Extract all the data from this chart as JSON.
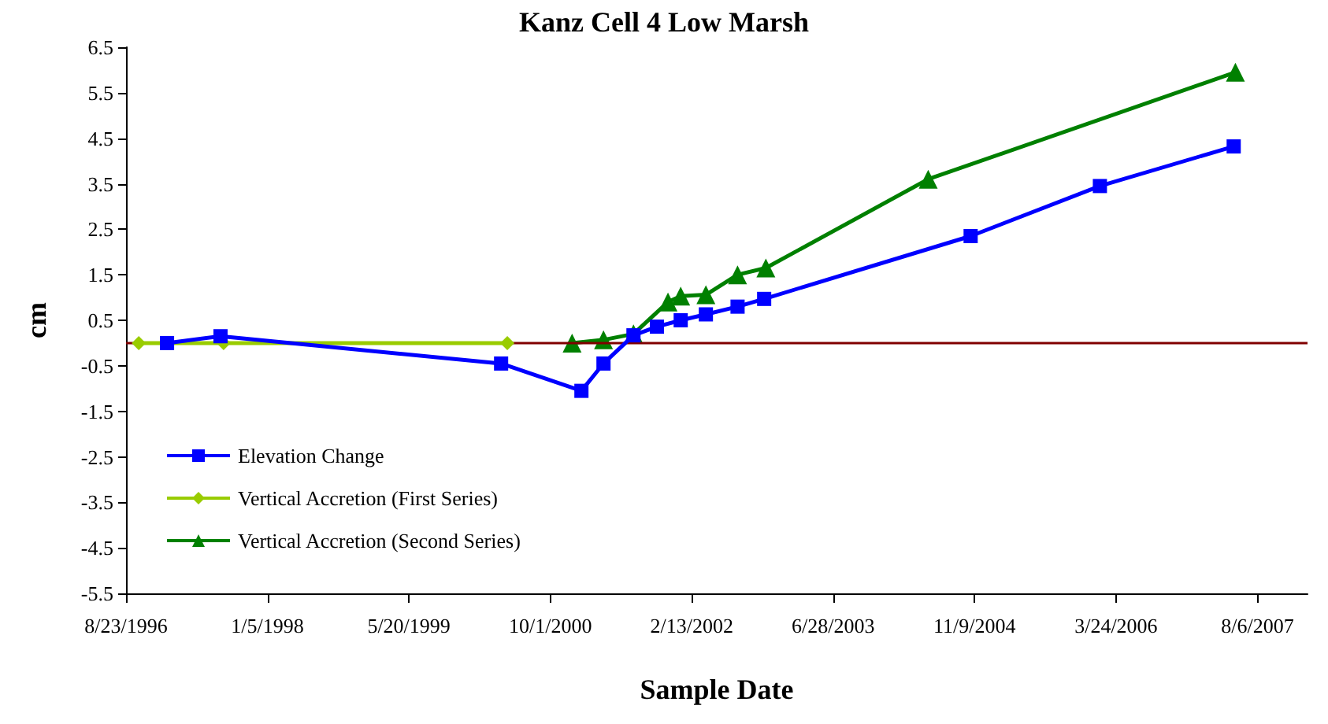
{
  "chart_data": {
    "type": "line",
    "title": "Kanz Cell 4 Low Marsh",
    "xlabel": "Sample Date",
    "ylabel": "cm",
    "xlim": [
      "1996-08-23",
      "2008-01-30"
    ],
    "xticks": [
      {
        "value": "1996-08-23",
        "label": "8/23/1996"
      },
      {
        "value": "1998-01-05",
        "label": "1/5/1998"
      },
      {
        "value": "1999-05-20",
        "label": "5/20/1999"
      },
      {
        "value": "2000-10-01",
        "label": "10/1/2000"
      },
      {
        "value": "2002-02-13",
        "label": "2/13/2002"
      },
      {
        "value": "2003-06-28",
        "label": "6/28/2003"
      },
      {
        "value": "2004-11-09",
        "label": "11/9/2004"
      },
      {
        "value": "2006-03-24",
        "label": "3/24/2006"
      },
      {
        "value": "2007-08-06",
        "label": "8/6/2007"
      }
    ],
    "ylim": [
      -5.5,
      6.5
    ],
    "yticks": [
      -5.5,
      -4.5,
      -3.5,
      -2.5,
      -1.5,
      -0.5,
      0.5,
      1.5,
      2.5,
      3.5,
      4.5,
      5.5,
      6.5
    ],
    "grid": false,
    "legend": "bottom left",
    "line_style": "solid",
    "ref_lines": [
      {
        "axis": "y",
        "value": 0,
        "color": "#800000"
      }
    ],
    "series": [
      {
        "name": "Elevation Change",
        "color": "#0000ff",
        "marker": "square",
        "x": [
          "1997-01-15",
          "1997-07-23",
          "2000-04-10",
          "2001-01-19",
          "2001-04-07",
          "2001-07-22",
          "2001-10-13",
          "2002-01-05",
          "2002-04-04",
          "2002-07-25",
          "2002-10-27",
          "2004-10-26",
          "2006-01-26",
          "2007-05-14"
        ],
        "values": [
          0,
          0.15,
          -0.45,
          -1.05,
          -0.45,
          0.17,
          0.36,
          0.5,
          0.63,
          0.8,
          0.97,
          2.35,
          3.45,
          4.32
        ]
      },
      {
        "name": "Vertical Accretion (First Series)",
        "color": "#99cc00",
        "marker": "diamond",
        "x": [
          "1996-10-07",
          "1997-08-03",
          "2000-05-02"
        ],
        "values": [
          0,
          0,
          0
        ]
      },
      {
        "name": "Vertical Accretion (Second Series)",
        "color": "#008000",
        "marker": "triangle",
        "x": [
          "2000-12-17",
          "2001-04-07",
          "2001-07-22",
          "2001-11-21",
          "2002-01-05",
          "2002-04-04",
          "2002-07-25",
          "2002-11-02",
          "2004-05-29",
          "2007-05-20"
        ],
        "values": [
          0,
          0.07,
          0.2,
          0.9,
          1.03,
          1.06,
          1.5,
          1.65,
          3.6,
          5.95
        ]
      }
    ]
  }
}
